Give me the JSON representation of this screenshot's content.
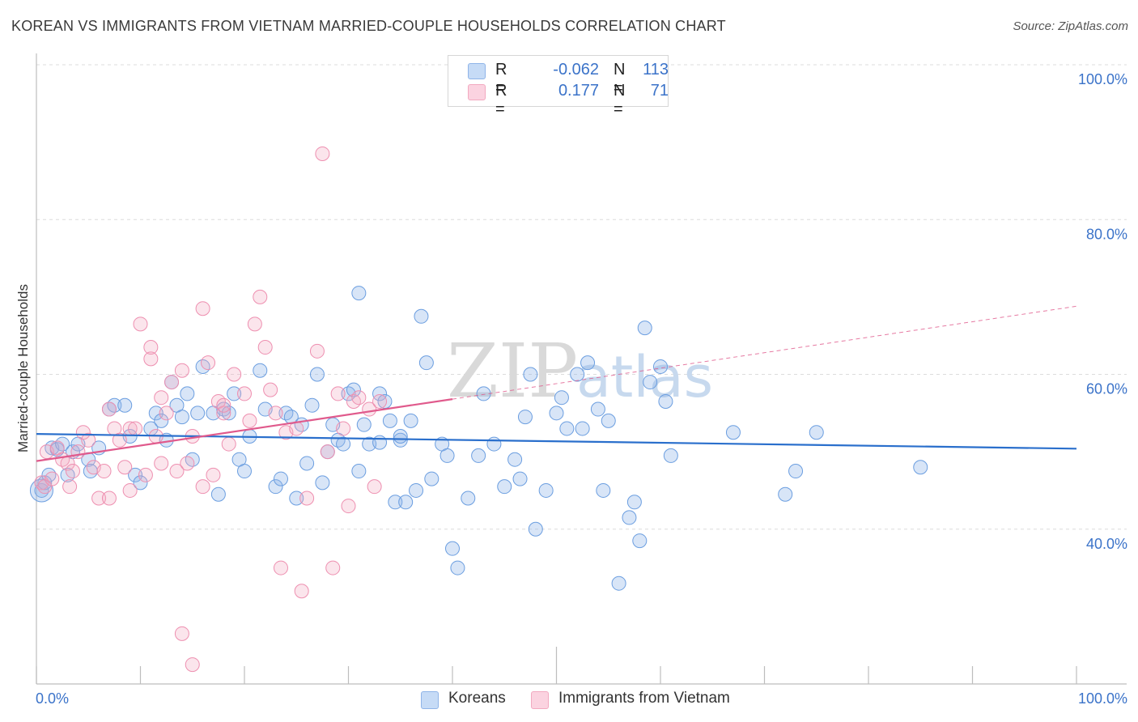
{
  "title": "KOREAN VS IMMIGRANTS FROM VIETNAM MARRIED-COUPLE HOUSEHOLDS CORRELATION CHART",
  "source": "Source: ZipAtlas.com",
  "watermark": {
    "zip": "ZIP",
    "atlas": "atlas"
  },
  "legend": {
    "koreans": {
      "r_label": "R =",
      "r_value": "-0.062",
      "n_label": "N =",
      "n_value": "113",
      "color": "#8fb4e8"
    },
    "vietnam": {
      "r_label": "R =",
      "r_value": "0.177",
      "n_label": "N =",
      "n_value": "71",
      "color": "#f2a9c0"
    }
  },
  "bottom_legend": {
    "koreans": "Koreans",
    "vietnam": "Immigrants from Vietnam"
  },
  "chart_data": {
    "type": "scatter",
    "title": "KOREAN VS IMMIGRANTS FROM VIETNAM MARRIED-COUPLE HOUSEHOLDS CORRELATION CHART",
    "xlabel": "",
    "ylabel": "Married-couple Households",
    "xlim": [
      0,
      100
    ],
    "ylim": [
      20,
      100
    ],
    "x_tick_labels": [
      "0.0%",
      "100.0%"
    ],
    "y_ticks": [
      40,
      60,
      80,
      100
    ],
    "y_tick_labels": [
      "40.0%",
      "60.0%",
      "80.0%",
      "100.0%"
    ],
    "grid": true,
    "legend_position": "top-center",
    "colors": {
      "koreans": "#6b9ee0",
      "koreans_line": "#2a6fcc",
      "vietnam": "#ee8fb0",
      "vietnam_line": "#e05a8c"
    },
    "series": [
      {
        "name": "Koreans",
        "r": -0.062,
        "n": 113,
        "trend": {
          "x": [
            0,
            100
          ],
          "y": [
            52.3,
            50.4
          ]
        },
        "points": [
          [
            0.5,
            45
          ],
          [
            0.8,
            46
          ],
          [
            1.2,
            47
          ],
          [
            1.5,
            50.5
          ],
          [
            2,
            50.3
          ],
          [
            2.5,
            51
          ],
          [
            3,
            47
          ],
          [
            3.5,
            50
          ],
          [
            4,
            51
          ],
          [
            5,
            49
          ],
          [
            5.2,
            47.5
          ],
          [
            6,
            50.5
          ],
          [
            7,
            55.5
          ],
          [
            7.5,
            56
          ],
          [
            8.5,
            56
          ],
          [
            9,
            52
          ],
          [
            9.5,
            47
          ],
          [
            10,
            46
          ],
          [
            11,
            53
          ],
          [
            11.5,
            55
          ],
          [
            12,
            54
          ],
          [
            12.5,
            51.5
          ],
          [
            13,
            59
          ],
          [
            13.5,
            56
          ],
          [
            14,
            54.5
          ],
          [
            14.5,
            57.5
          ],
          [
            15,
            49
          ],
          [
            15.5,
            55
          ],
          [
            16,
            61
          ],
          [
            17,
            55
          ],
          [
            17.5,
            44.5
          ],
          [
            18,
            55.5
          ],
          [
            18.5,
            55
          ],
          [
            19,
            57.5
          ],
          [
            19.5,
            49
          ],
          [
            20,
            47.5
          ],
          [
            20.5,
            52
          ],
          [
            21.5,
            60.5
          ],
          [
            22,
            55.5
          ],
          [
            23,
            45.5
          ],
          [
            23.5,
            46.5
          ],
          [
            24,
            55
          ],
          [
            24.5,
            54.5
          ],
          [
            25,
            44
          ],
          [
            25.5,
            53.5
          ],
          [
            26,
            48.5
          ],
          [
            26.5,
            56
          ],
          [
            27,
            60
          ],
          [
            27.5,
            46
          ],
          [
            28,
            50
          ],
          [
            28.5,
            53.5
          ],
          [
            29,
            51.5
          ],
          [
            29.5,
            51
          ],
          [
            30,
            57.5
          ],
          [
            30.5,
            58
          ],
          [
            31,
            47.5
          ],
          [
            31.5,
            53.5
          ],
          [
            32,
            51
          ],
          [
            33,
            57.5
          ],
          [
            33.5,
            56.5
          ],
          [
            34,
            54
          ],
          [
            34.5,
            43.5
          ],
          [
            35,
            51.5
          ],
          [
            35.5,
            43.5
          ],
          [
            36,
            54
          ],
          [
            36.5,
            45
          ],
          [
            37,
            67.5
          ],
          [
            37.5,
            61.5
          ],
          [
            38,
            46.5
          ],
          [
            39,
            51
          ],
          [
            39.5,
            49.5
          ],
          [
            40,
            37.5
          ],
          [
            40.5,
            35
          ],
          [
            41.5,
            44
          ],
          [
            42.5,
            49.5
          ],
          [
            43,
            57.5
          ],
          [
            44,
            51
          ],
          [
            45,
            45.5
          ],
          [
            46,
            49
          ],
          [
            46.5,
            46.5
          ],
          [
            47,
            54.5
          ],
          [
            47.5,
            60
          ],
          [
            48,
            40
          ],
          [
            49,
            45
          ],
          [
            50,
            55
          ],
          [
            50.5,
            57
          ],
          [
            51,
            53
          ],
          [
            52,
            60
          ],
          [
            52.5,
            53
          ],
          [
            53,
            61.5
          ],
          [
            54,
            55.5
          ],
          [
            54.5,
            45
          ],
          [
            55,
            54
          ],
          [
            56,
            33
          ],
          [
            57,
            41.5
          ],
          [
            57.5,
            43.5
          ],
          [
            58,
            38.5
          ],
          [
            58.5,
            66
          ],
          [
            59,
            59
          ],
          [
            60,
            61
          ],
          [
            60.5,
            56.5
          ],
          [
            61,
            49.5
          ],
          [
            67,
            52.5
          ],
          [
            72,
            44.5
          ],
          [
            73,
            47.5
          ],
          [
            75,
            52.5
          ],
          [
            85,
            48
          ],
          [
            31,
            70.5
          ],
          [
            33,
            51.2
          ],
          [
            35,
            52
          ]
        ]
      },
      {
        "name": "Immigrants from Vietnam",
        "r": 0.177,
        "n": 71,
        "trend": {
          "x": [
            0,
            40
          ],
          "y": [
            48.8,
            56.8
          ]
        },
        "trend_extrapolated": {
          "x": [
            40,
            100
          ],
          "y": [
            56.8,
            68.8
          ]
        },
        "points": [
          [
            0.5,
            46
          ],
          [
            0.8,
            45.5
          ],
          [
            1,
            50
          ],
          [
            1.5,
            46.5
          ],
          [
            2,
            50.5
          ],
          [
            2.5,
            49
          ],
          [
            3,
            48.5
          ],
          [
            3.2,
            45.5
          ],
          [
            3.5,
            47.5
          ],
          [
            4,
            50
          ],
          [
            4.5,
            52.5
          ],
          [
            5,
            51.5
          ],
          [
            5.5,
            48
          ],
          [
            6,
            44
          ],
          [
            6.5,
            47.5
          ],
          [
            7,
            44
          ],
          [
            7.5,
            53
          ],
          [
            8,
            51.5
          ],
          [
            8.5,
            48
          ],
          [
            9,
            53
          ],
          [
            9.5,
            53
          ],
          [
            10,
            66.5
          ],
          [
            10.5,
            47
          ],
          [
            11,
            62
          ],
          [
            11.5,
            52
          ],
          [
            12,
            48.5
          ],
          [
            12.5,
            55
          ],
          [
            13,
            59
          ],
          [
            13.5,
            47.5
          ],
          [
            14,
            60.5
          ],
          [
            14.5,
            48.5
          ],
          [
            15,
            52
          ],
          [
            16,
            45.5
          ],
          [
            16.5,
            61.5
          ],
          [
            17,
            47
          ],
          [
            17.5,
            56.5
          ],
          [
            18,
            55
          ],
          [
            18.5,
            51
          ],
          [
            19,
            60
          ],
          [
            20,
            57.5
          ],
          [
            20.5,
            54
          ],
          [
            21,
            66.5
          ],
          [
            21.5,
            70
          ],
          [
            22,
            63.5
          ],
          [
            22.5,
            58
          ],
          [
            23,
            55
          ],
          [
            23.5,
            35
          ],
          [
            24,
            52.5
          ],
          [
            25,
            53
          ],
          [
            25.5,
            32
          ],
          [
            26,
            44
          ],
          [
            27,
            63
          ],
          [
            27.5,
            88.5
          ],
          [
            28,
            50
          ],
          [
            28.5,
            35
          ],
          [
            29,
            57.5
          ],
          [
            29.5,
            53
          ],
          [
            30,
            43
          ],
          [
            30.5,
            56.5
          ],
          [
            31,
            57
          ],
          [
            32,
            55.5
          ],
          [
            32.5,
            45.5
          ],
          [
            33,
            56.5
          ],
          [
            14,
            26.5
          ],
          [
            15,
            22.5
          ],
          [
            7,
            55.5
          ],
          [
            9,
            45
          ],
          [
            11,
            63.5
          ],
          [
            16,
            68.5
          ],
          [
            18,
            56
          ],
          [
            12,
            57
          ]
        ]
      }
    ]
  }
}
